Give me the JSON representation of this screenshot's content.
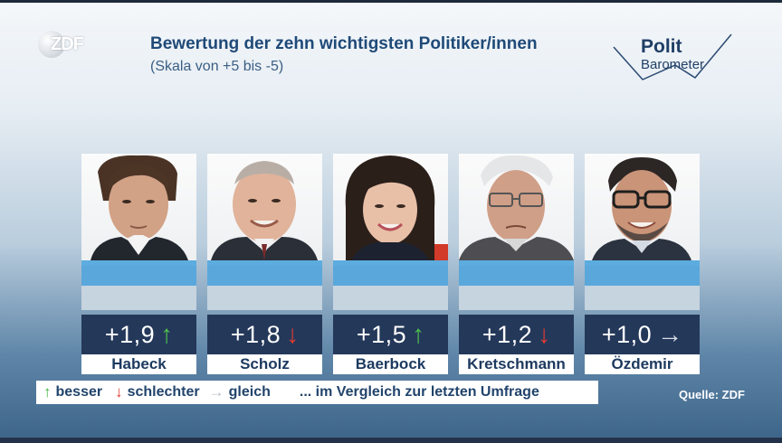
{
  "broadcaster": {
    "logo_text": "ZDF"
  },
  "header": {
    "title": "Bewertung der zehn wichtigsten Politiker/innen",
    "subtitle": "(Skala von +5 bis -5)"
  },
  "brand": {
    "line1": "Polit",
    "line2": "Barometer"
  },
  "politicians": [
    {
      "name": "Habeck",
      "score": "+1,9",
      "trend": "up",
      "trend_glyph": "↑"
    },
    {
      "name": "Scholz",
      "score": "+1,8",
      "trend": "down",
      "trend_glyph": "↓"
    },
    {
      "name": "Baerbock",
      "score": "+1,5",
      "trend": "up",
      "trend_glyph": "↑"
    },
    {
      "name": "Kretschmann",
      "score": "+1,2",
      "trend": "down",
      "trend_glyph": "↓"
    },
    {
      "name": "Özdemir",
      "score": "+1,0",
      "trend": "same",
      "trend_glyph": "→"
    }
  ],
  "legend": {
    "up_glyph": "↑",
    "up_label": "besser",
    "down_glyph": "↓",
    "down_label": "schlechter",
    "same_glyph": "→",
    "same_label": "gleich",
    "note": "... im Vergleich zur letzten Umfrage"
  },
  "source": "Quelle: ZDF",
  "colors": {
    "score_box": "#24385a",
    "up": "#4ec24e",
    "down": "#e33b30",
    "same": "#d7dde4",
    "accent_bar": "#5aa7db"
  }
}
